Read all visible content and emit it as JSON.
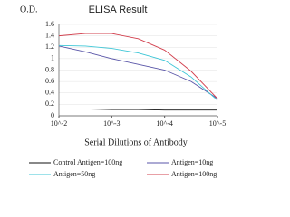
{
  "chart_data": {
    "type": "line",
    "title": "ELISA Result",
    "y_label": "O.D.",
    "x_label": "Serial Dilutions of Antibody",
    "x": [
      2,
      2.5,
      3,
      3.5,
      4,
      4.5,
      5
    ],
    "xlim": [
      2,
      5
    ],
    "xticks": [
      {
        "value": 2,
        "label": "10^-2"
      },
      {
        "value": 3,
        "label": "10^-3"
      },
      {
        "value": 4,
        "label": "10^-4"
      },
      {
        "value": 5,
        "label": "10^-5"
      }
    ],
    "ylim": [
      0,
      1.6
    ],
    "yticks": [
      0,
      0.2,
      0.4,
      0.6,
      0.8,
      1,
      1.2,
      1.4,
      1.6
    ],
    "grid": true,
    "series": [
      {
        "name": "Control Antigen=100ng",
        "color": "#111111",
        "values": [
          0.12,
          0.12,
          0.11,
          0.11,
          0.1,
          0.1,
          0.1
        ]
      },
      {
        "name": "Antigen=10ng",
        "color": "#5a56a8",
        "values": [
          1.22,
          1.12,
          1.0,
          0.9,
          0.8,
          0.6,
          0.3
        ]
      },
      {
        "name": "Antigen=50ng",
        "color": "#3cc6d6",
        "values": [
          1.23,
          1.22,
          1.18,
          1.1,
          0.97,
          0.68,
          0.27
        ]
      },
      {
        "name": "Antigen=100ng",
        "color": "#d2404e",
        "values": [
          1.4,
          1.44,
          1.44,
          1.35,
          1.15,
          0.78,
          0.3
        ]
      }
    ]
  }
}
